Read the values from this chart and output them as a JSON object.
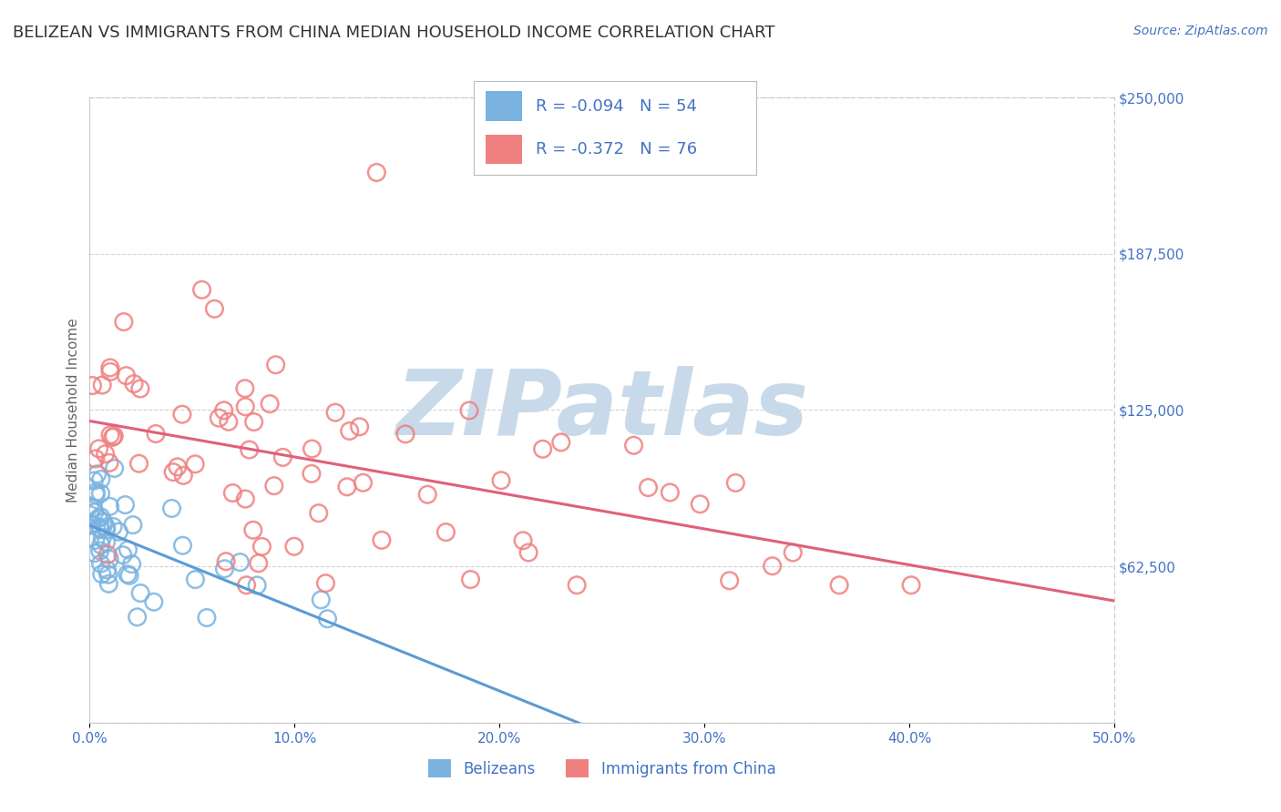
{
  "title": "BELIZEAN VS IMMIGRANTS FROM CHINA MEDIAN HOUSEHOLD INCOME CORRELATION CHART",
  "source": "Source: ZipAtlas.com",
  "ylabel": "Median Household Income",
  "xlabel": "",
  "xlim": [
    0.0,
    50.0
  ],
  "ylim": [
    0,
    250000
  ],
  "yticks": [
    0,
    62500,
    125000,
    187500,
    250000
  ],
  "ytick_labels": [
    "",
    "$62,500",
    "$125,000",
    "$187,500",
    "$250,000"
  ],
  "xticks": [
    0.0,
    10.0,
    20.0,
    30.0,
    40.0,
    50.0
  ],
  "xtick_labels": [
    "0.0%",
    "10.0%",
    "20.0%",
    "30.0%",
    "40.0%",
    "50.0%"
  ],
  "belizean_color": "#7ab3e0",
  "china_color": "#f08080",
  "belizean_R": -0.094,
  "belizean_N": 54,
  "china_R": -0.372,
  "china_N": 76,
  "label_color": "#4472c4",
  "watermark": "ZIPatlas",
  "watermark_color": "#c8daea",
  "background_color": "#ffffff",
  "grid_color": "#c8c8c8",
  "title_fontsize": 13,
  "axis_label_fontsize": 11,
  "tick_fontsize": 11,
  "legend_fontsize": 13
}
